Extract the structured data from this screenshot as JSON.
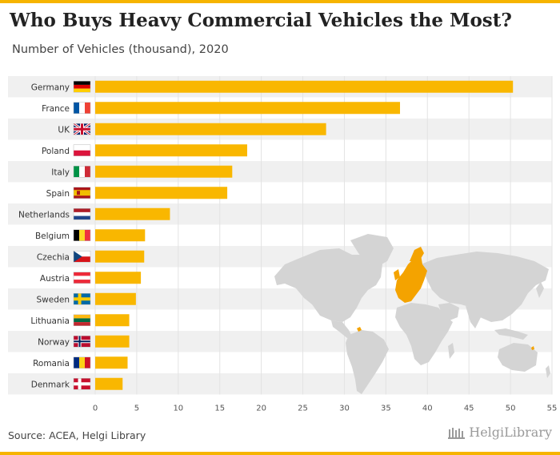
{
  "header": {
    "title": "Who Buys Heavy Commercial Vehicles the Most?",
    "subtitle": "Number of Vehicles (thousand), 2020"
  },
  "footer": {
    "source": "Source: ACEA, Helgi Library",
    "brand": "HelgiLibrary"
  },
  "colors": {
    "bar": "#f9b700",
    "band": "#f0f0f0",
    "map_land": "#d4d4d4",
    "map_highlight": "#f4a300",
    "accent": "#f6b400"
  },
  "chart_data": {
    "type": "bar",
    "orientation": "horizontal",
    "categories": [
      "Germany",
      "France",
      "UK",
      "Poland",
      "Italy",
      "Spain",
      "Netherlands",
      "Belgium",
      "Czechia",
      "Austria",
      "Sweden",
      "Lithuania",
      "Norway",
      "Romania",
      "Denmark"
    ],
    "values": [
      50.3,
      36.7,
      27.8,
      18.3,
      16.5,
      15.9,
      9.0,
      6.0,
      5.9,
      5.5,
      4.9,
      4.1,
      4.1,
      3.9,
      3.3
    ],
    "flag_icons": [
      "germany-flag-icon",
      "france-flag-icon",
      "uk-flag-icon",
      "poland-flag-icon",
      "italy-flag-icon",
      "spain-flag-icon",
      "netherlands-flag-icon",
      "belgium-flag-icon",
      "czechia-flag-icon",
      "austria-flag-icon",
      "sweden-flag-icon",
      "lithuania-flag-icon",
      "norway-flag-icon",
      "romania-flag-icon",
      "denmark-flag-icon"
    ],
    "title": "Who Buys Heavy Commercial Vehicles the Most?",
    "subtitle": "Number of Vehicles (thousand), 2020",
    "xlabel": "",
    "ylabel": "",
    "xlim": [
      0,
      55
    ],
    "ticks": [
      "0",
      "5",
      "10",
      "15",
      "20",
      "25",
      "30",
      "35",
      "40",
      "45",
      "50",
      "55"
    ],
    "grid": "vertical",
    "legend": "none",
    "background_image": "world-map-europe-highlighted"
  }
}
